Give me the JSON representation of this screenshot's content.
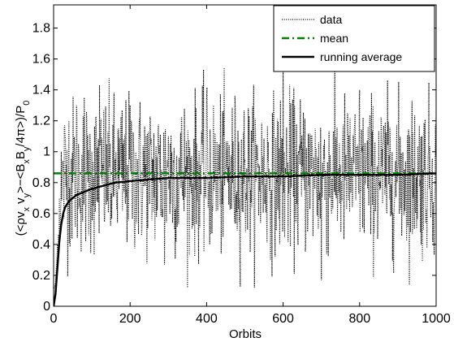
{
  "chart_data": {
    "type": "line",
    "title": "",
    "xlabel": "Orbits",
    "ylabel": "(<ρv_x v_y>−<B_x B_y/4π>)/P_0",
    "ylabel_parts": {
      "open": "(<ρv",
      "sub1": "x",
      "mid1": " v",
      "sub2": "y",
      "mid2": ">−<B",
      "sub3": "x",
      "mid3": "B",
      "sub4": "y",
      "mid4": "/4π>)/P",
      "sub5": "0"
    },
    "xlim": [
      0,
      1000
    ],
    "ylim": [
      0,
      1.95
    ],
    "x_ticks": [
      0,
      200,
      400,
      600,
      800,
      1000
    ],
    "x_tick_labels": [
      "0",
      "200",
      "400",
      "600",
      "800",
      "1000"
    ],
    "y_ticks": [
      0,
      0.2,
      0.4,
      0.6,
      0.8,
      1,
      1.2,
      1.4,
      1.6,
      1.8
    ],
    "y_tick_labels": [
      "0",
      "0.2",
      "0.4",
      "0.6",
      "0.8",
      "1",
      "1.2",
      "1.4",
      "1.6",
      "1.8"
    ],
    "grid": false,
    "legend_position": "top-right",
    "series": [
      {
        "name": "data",
        "style": "dotted",
        "color": "#000000",
        "description_points": {
          "x": [
            0,
            5,
            10,
            15,
            20,
            25,
            30,
            40,
            50,
            60,
            70,
            80,
            100,
            120,
            150,
            200,
            250,
            290,
            300,
            400,
            500,
            600,
            700,
            800,
            900,
            1000
          ],
          "y": [
            0.0,
            0.1,
            0.4,
            0.7,
            1.0,
            0.9,
            1.1,
            1.2,
            0.8,
            1.3,
            0.6,
            1.35,
            1.0,
            1.43,
            0.7,
            1.3,
            0.9,
            0.27,
            1.1,
            1.35,
            0.95,
            1.55,
            0.17,
            1.4,
            0.9,
            1.23
          ]
        },
        "mean_value": 0.85,
        "spread": 0.25,
        "n_samples": 1000
      },
      {
        "name": "mean",
        "style": "dash-dot",
        "color": "#008000",
        "x": [
          0,
          1000
        ],
        "y": [
          0.86,
          0.86
        ]
      },
      {
        "name": "running average",
        "style": "solid",
        "color": "#000000",
        "x": [
          0,
          5,
          10,
          15,
          20,
          25,
          30,
          40,
          50,
          60,
          80,
          100,
          130,
          160,
          200,
          250,
          300,
          400,
          500,
          600,
          700,
          800,
          900,
          1000
        ],
        "y": [
          0.0,
          0.08,
          0.25,
          0.42,
          0.53,
          0.6,
          0.64,
          0.68,
          0.7,
          0.72,
          0.74,
          0.76,
          0.78,
          0.8,
          0.81,
          0.82,
          0.83,
          0.83,
          0.84,
          0.84,
          0.85,
          0.85,
          0.85,
          0.86
        ]
      }
    ]
  }
}
